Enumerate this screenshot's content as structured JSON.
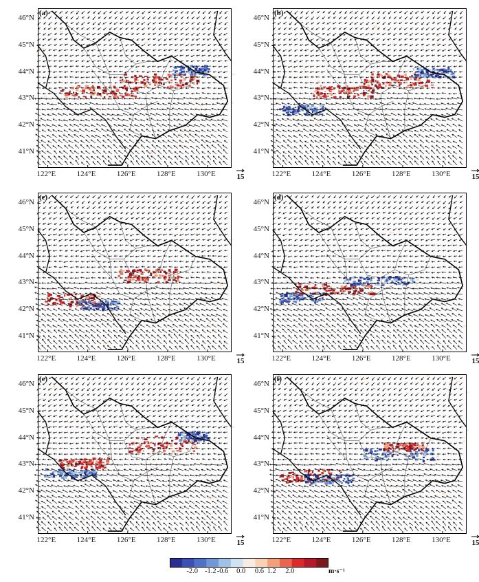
{
  "panels": [
    {
      "label": "(a)",
      "bands": [
        {
          "lat": 43.3,
          "lon0": 122.5,
          "lon1": 126.5,
          "sign": 1,
          "w": 0.45
        },
        {
          "lat": 43.7,
          "lon0": 125.5,
          "lon1": 129.5,
          "sign": 1,
          "w": 0.5
        },
        {
          "lat": 44.1,
          "lon0": 128.2,
          "lon1": 130.0,
          "sign": -1,
          "w": 0.35
        }
      ]
    },
    {
      "label": "(b)",
      "bands": [
        {
          "lat": 42.6,
          "lon0": 121.8,
          "lon1": 124.0,
          "sign": -1,
          "w": 0.35
        },
        {
          "lat": 43.3,
          "lon0": 123.5,
          "lon1": 126.5,
          "sign": 1,
          "w": 0.45
        },
        {
          "lat": 43.7,
          "lon0": 126.0,
          "lon1": 129.5,
          "sign": 1,
          "w": 0.55
        },
        {
          "lat": 44.0,
          "lon0": 128.5,
          "lon1": 130.5,
          "sign": -1,
          "w": 0.35
        }
      ]
    },
    {
      "label": "(c)",
      "bands": [
        {
          "lat": 42.4,
          "lon0": 121.8,
          "lon1": 124.5,
          "sign": 1,
          "w": 0.45
        },
        {
          "lat": 42.2,
          "lon0": 123.5,
          "lon1": 125.5,
          "sign": -1,
          "w": 0.35
        },
        {
          "lat": 43.3,
          "lon0": 125.5,
          "lon1": 128.5,
          "sign": 1,
          "w": 0.5
        }
      ]
    },
    {
      "label": "(d)",
      "bands": [
        {
          "lat": 42.5,
          "lon0": 121.8,
          "lon1": 124.0,
          "sign": -1,
          "w": 0.35
        },
        {
          "lat": 42.8,
          "lon0": 122.5,
          "lon1": 126.5,
          "sign": 1,
          "w": 0.4
        },
        {
          "lat": 43.1,
          "lon0": 125.0,
          "lon1": 128.5,
          "sign": -1,
          "w": 0.35
        }
      ]
    },
    {
      "label": "(e)",
      "bands": [
        {
          "lat": 42.7,
          "lon0": 121.8,
          "lon1": 124.5,
          "sign": -1,
          "w": 0.35
        },
        {
          "lat": 43.1,
          "lon0": 122.5,
          "lon1": 125.0,
          "sign": 1,
          "w": 0.4
        },
        {
          "lat": 43.8,
          "lon0": 126.0,
          "lon1": 129.5,
          "sign": 1,
          "w": 0.6
        },
        {
          "lat": 44.1,
          "lon0": 128.5,
          "lon1": 130.0,
          "sign": -1,
          "w": 0.35
        }
      ]
    },
    {
      "label": "(f)",
      "bands": [
        {
          "lat": 42.6,
          "lon0": 121.8,
          "lon1": 125.0,
          "sign": 1,
          "w": 0.5
        },
        {
          "lat": 42.5,
          "lon0": 123.0,
          "lon1": 125.5,
          "sign": -1,
          "w": 0.35
        },
        {
          "lat": 43.4,
          "lon0": 126.0,
          "lon1": 129.5,
          "sign": -1,
          "w": 0.45
        },
        {
          "lat": 43.7,
          "lon0": 127.0,
          "lon1": 129.0,
          "sign": 1,
          "w": 0.3
        }
      ]
    }
  ],
  "lat_ticks": [
    {
      "value": 41,
      "label": "41°N"
    },
    {
      "value": 42,
      "label": "42°N"
    },
    {
      "value": 43,
      "label": "43°N"
    },
    {
      "value": 44,
      "label": "44°N"
    },
    {
      "value": 45,
      "label": "45°N"
    },
    {
      "value": 46,
      "label": "46°N"
    }
  ],
  "lon_ticks": [
    {
      "value": 122,
      "label": "122°E"
    },
    {
      "value": 124,
      "label": "124°E"
    },
    {
      "value": 126,
      "label": "126°E"
    },
    {
      "value": 128,
      "label": "128°E"
    },
    {
      "value": 130,
      "label": "130°E"
    }
  ],
  "extent": {
    "lon": [
      121.5,
      131.2
    ],
    "lat": [
      40.4,
      46.4
    ]
  },
  "reference_vector": "15",
  "colorbar": {
    "ticks": [
      "-2.0",
      "-1.2",
      "-0.6",
      "0.0",
      "0.6",
      "1.2",
      "2.0"
    ],
    "unit": "m·s⁻¹",
    "colors": [
      "#2b2f8f",
      "#3c4fb3",
      "#4f72c7",
      "#6f98d6",
      "#9fc2e4",
      "#cfe2f1",
      "#f6ecdf",
      "#f8d2b3",
      "#f2a07c",
      "#e9654f",
      "#dc2a2c",
      "#b5192a",
      "#7d1a1e"
    ]
  },
  "colors": {
    "outline": "#000000",
    "county": "#555555",
    "vector": "#1a1a1a"
  }
}
